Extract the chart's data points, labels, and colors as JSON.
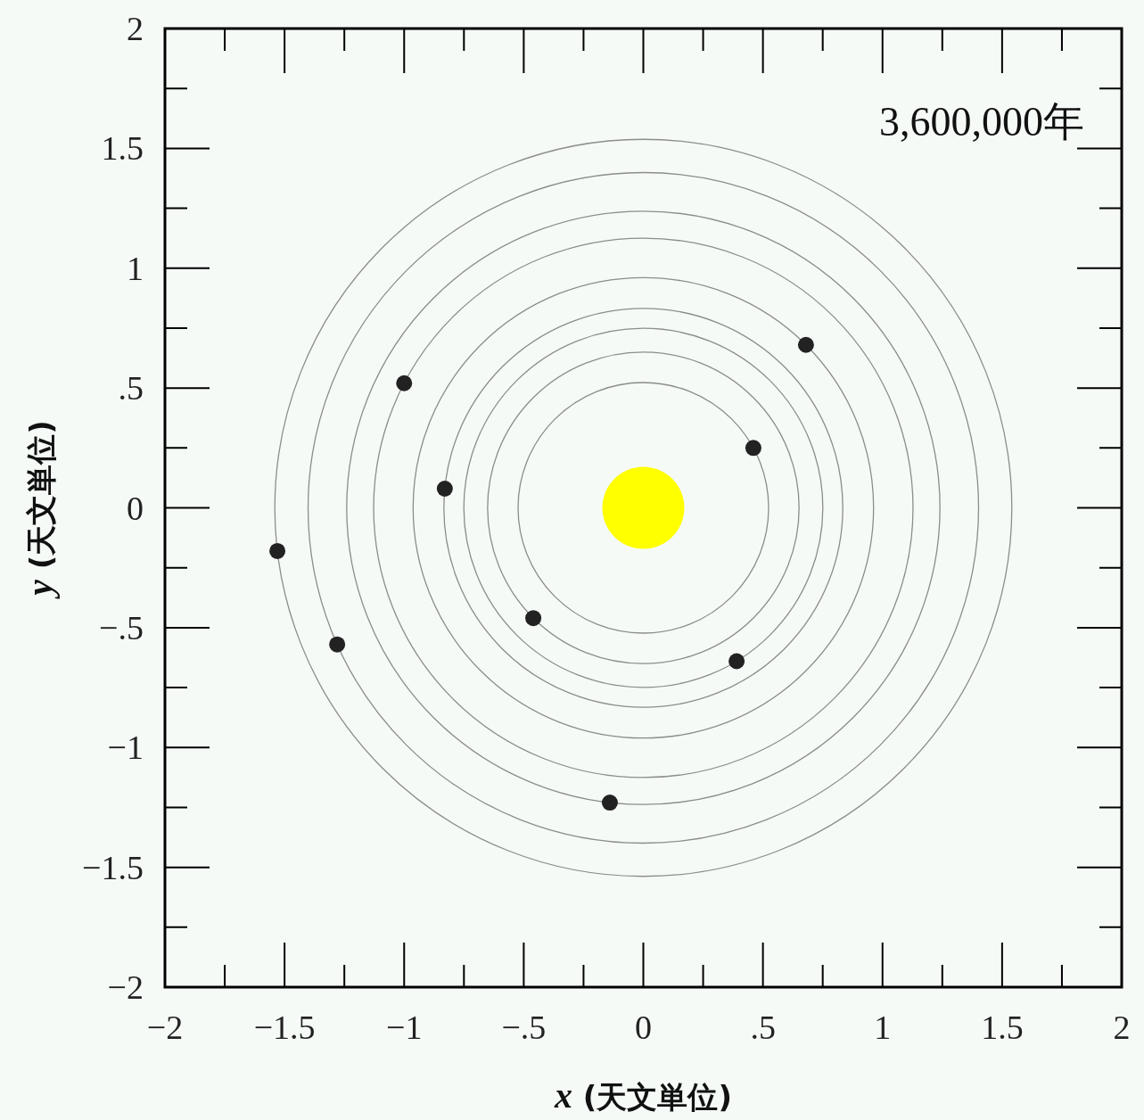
{
  "chart_data": {
    "type": "scatter",
    "xlabel": "x (天文単位)",
    "ylabel": "y (天文単位)",
    "annotations": [
      "3,600,000年"
    ],
    "xlim": [
      -2,
      2
    ],
    "ylim": [
      -2,
      2
    ],
    "xticks": [
      {
        "value": -2,
        "label": "−2"
      },
      {
        "value": -1.5,
        "label": "−1.5"
      },
      {
        "value": -1,
        "label": "−1"
      },
      {
        "value": -0.5,
        "label": "−.5"
      },
      0,
      {
        "value": 0.5,
        "label": ".5"
      },
      1,
      1.5,
      2
    ],
    "yticks": [
      {
        "value": -2,
        "label": "−2"
      },
      {
        "value": -1.5,
        "label": "−1.5"
      },
      {
        "value": -1,
        "label": "−1"
      },
      {
        "value": -0.5,
        "label": "−.5"
      },
      0,
      {
        "value": 0.5,
        "label": ".5"
      },
      1,
      1.5,
      2
    ],
    "series": [
      {
        "type": "bubble",
        "color": "#ffff00",
        "marker": "circle",
        "x": [
          0
        ],
        "values": [
          0
        ],
        "sizes": [
          1
        ]
      },
      {
        "type": "scatter",
        "color": "#222222",
        "marker": "circle",
        "x": [
          -1.53,
          -1.28,
          -1.0,
          -0.83,
          -0.46,
          -0.14,
          0.39,
          0.46,
          0.68
        ],
        "values": [
          -0.18,
          -0.57,
          0.52,
          0.08,
          -0.46,
          -1.23,
          -0.64,
          0.25,
          0.68
        ]
      }
    ]
  }
}
